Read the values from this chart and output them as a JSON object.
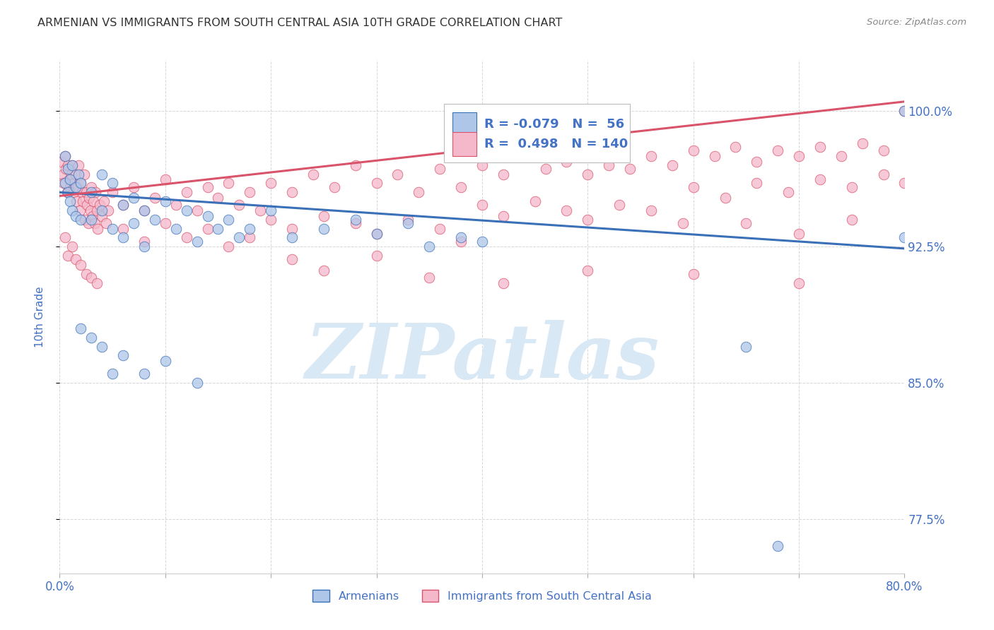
{
  "title": "ARMENIAN VS IMMIGRANTS FROM SOUTH CENTRAL ASIA 10TH GRADE CORRELATION CHART",
  "source": "Source: ZipAtlas.com",
  "ylabel": "10th Grade",
  "ytick_labels": [
    "100.0%",
    "92.5%",
    "85.0%",
    "77.5%"
  ],
  "ytick_values": [
    1.0,
    0.925,
    0.85,
    0.775
  ],
  "legend_r_blue": "-0.079",
  "legend_n_blue": "56",
  "legend_r_pink": "0.498",
  "legend_n_pink": "140",
  "legend_label_blue": "Armenians",
  "legend_label_pink": "Immigrants from South Central Asia",
  "color_blue": "#aec6e8",
  "color_pink": "#f5b8cb",
  "color_blue_line": "#3a70b8",
  "color_pink_line": "#d9546a",
  "watermark": "ZIPatlas",
  "watermark_color": "#d8e8f5",
  "background_color": "#ffffff",
  "grid_color": "#cccccc",
  "title_color": "#333333",
  "axis_label_color": "#4472c4",
  "xmin": 0.0,
  "xmax": 0.8,
  "ymin": 0.745,
  "ymax": 1.028,
  "blue_line_x0": 0.0,
  "blue_line_y0": 0.955,
  "blue_line_x1": 0.8,
  "blue_line_y1": 0.924,
  "pink_line_x0": 0.0,
  "pink_line_y0": 0.953,
  "pink_line_x1": 0.8,
  "pink_line_y1": 1.005
}
